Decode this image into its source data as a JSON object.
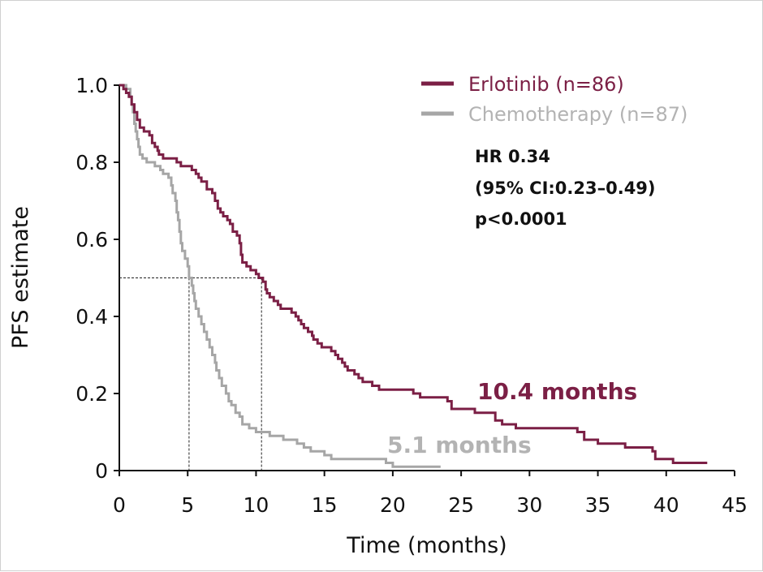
{
  "chart_data": {
    "type": "line",
    "title": "",
    "xlabel": "Time (months)",
    "ylabel": "PFS estimate",
    "xlim": [
      0,
      45
    ],
    "ylim": [
      0,
      1
    ],
    "x_ticks": [
      {
        "value": 0,
        "label": "0"
      },
      {
        "value": 5,
        "label": "5"
      },
      {
        "value": 10,
        "label": "10"
      },
      {
        "value": 15,
        "label": "15"
      },
      {
        "value": 20,
        "label": "20"
      },
      {
        "value": 25,
        "label": "25"
      },
      {
        "value": 30,
        "label": "30"
      },
      {
        "value": 35,
        "label": "35"
      },
      {
        "value": 40,
        "label": "40"
      },
      {
        "value": 45,
        "label": "45"
      }
    ],
    "y_ticks": [
      {
        "value": 0,
        "label": "0"
      },
      {
        "value": 0.2,
        "label": "0.2"
      },
      {
        "value": 0.4,
        "label": "0.4"
      },
      {
        "value": 0.6,
        "label": "0.6"
      },
      {
        "value": 0.8,
        "label": "0.8"
      },
      {
        "value": 1.0,
        "label": "1.0"
      }
    ],
    "grid": false,
    "legend_position": "top-right",
    "series": [
      {
        "name": "Erlotinib (n=86)",
        "color": "#7b1f45",
        "steps": [
          [
            0,
            1.0
          ],
          [
            0.3,
            0.99
          ],
          [
            0.5,
            0.98
          ],
          [
            0.7,
            0.97
          ],
          [
            0.9,
            0.95
          ],
          [
            1.1,
            0.93
          ],
          [
            1.3,
            0.91
          ],
          [
            1.5,
            0.89
          ],
          [
            1.8,
            0.88
          ],
          [
            2.2,
            0.87
          ],
          [
            2.4,
            0.85
          ],
          [
            2.6,
            0.84
          ],
          [
            2.8,
            0.83
          ],
          [
            2.9,
            0.82
          ],
          [
            3.2,
            0.81
          ],
          [
            4.2,
            0.8
          ],
          [
            4.5,
            0.79
          ],
          [
            5.3,
            0.78
          ],
          [
            5.6,
            0.77
          ],
          [
            5.8,
            0.76
          ],
          [
            6.0,
            0.75
          ],
          [
            6.4,
            0.73
          ],
          [
            6.8,
            0.72
          ],
          [
            7.0,
            0.7
          ],
          [
            7.2,
            0.68
          ],
          [
            7.4,
            0.67
          ],
          [
            7.6,
            0.66
          ],
          [
            7.9,
            0.65
          ],
          [
            8.1,
            0.64
          ],
          [
            8.3,
            0.62
          ],
          [
            8.6,
            0.61
          ],
          [
            8.8,
            0.59
          ],
          [
            8.9,
            0.58
          ],
          [
            8.9,
            0.56
          ],
          [
            9.0,
            0.54
          ],
          [
            9.3,
            0.53
          ],
          [
            9.6,
            0.52
          ],
          [
            10.0,
            0.51
          ],
          [
            10.2,
            0.5
          ],
          [
            10.5,
            0.49
          ],
          [
            10.7,
            0.47
          ],
          [
            10.8,
            0.46
          ],
          [
            11.0,
            0.45
          ],
          [
            11.3,
            0.44
          ],
          [
            11.6,
            0.43
          ],
          [
            11.8,
            0.42
          ],
          [
            12.6,
            0.41
          ],
          [
            12.9,
            0.4
          ],
          [
            13.1,
            0.39
          ],
          [
            13.3,
            0.38
          ],
          [
            13.5,
            0.37
          ],
          [
            13.8,
            0.36
          ],
          [
            14.1,
            0.35
          ],
          [
            14.2,
            0.34
          ],
          [
            14.5,
            0.33
          ],
          [
            14.8,
            0.32
          ],
          [
            15.5,
            0.31
          ],
          [
            15.8,
            0.3
          ],
          [
            16.0,
            0.29
          ],
          [
            16.3,
            0.28
          ],
          [
            16.5,
            0.27
          ],
          [
            16.7,
            0.26
          ],
          [
            17.2,
            0.25
          ],
          [
            17.5,
            0.24
          ],
          [
            17.8,
            0.23
          ],
          [
            18.5,
            0.22
          ],
          [
            19.0,
            0.21
          ],
          [
            21.5,
            0.2
          ],
          [
            22.0,
            0.19
          ],
          [
            24.0,
            0.18
          ],
          [
            24.3,
            0.16
          ],
          [
            26.0,
            0.15
          ],
          [
            27.5,
            0.13
          ],
          [
            28.0,
            0.12
          ],
          [
            29.0,
            0.11
          ],
          [
            33.5,
            0.1
          ],
          [
            34.0,
            0.08
          ],
          [
            35.0,
            0.07
          ],
          [
            37.0,
            0.06
          ],
          [
            39.0,
            0.05
          ],
          [
            39.2,
            0.03
          ],
          [
            40.5,
            0.02
          ],
          [
            43.0,
            0.02
          ]
        ],
        "median_months": 10.4,
        "median_label": "10.4 months"
      },
      {
        "name": "Chemotherapy (n=87)",
        "color": "#a6a6a6",
        "steps": [
          [
            0,
            1.0
          ],
          [
            0.5,
            0.99
          ],
          [
            0.8,
            0.97
          ],
          [
            0.9,
            0.95
          ],
          [
            1.0,
            0.93
          ],
          [
            1.1,
            0.9
          ],
          [
            1.2,
            0.88
          ],
          [
            1.3,
            0.86
          ],
          [
            1.4,
            0.84
          ],
          [
            1.5,
            0.82
          ],
          [
            1.7,
            0.81
          ],
          [
            2.0,
            0.8
          ],
          [
            2.6,
            0.79
          ],
          [
            3.0,
            0.78
          ],
          [
            3.2,
            0.77
          ],
          [
            3.6,
            0.76
          ],
          [
            3.8,
            0.74
          ],
          [
            3.9,
            0.72
          ],
          [
            4.1,
            0.7
          ],
          [
            4.2,
            0.67
          ],
          [
            4.3,
            0.65
          ],
          [
            4.4,
            0.62
          ],
          [
            4.5,
            0.59
          ],
          [
            4.6,
            0.57
          ],
          [
            4.8,
            0.55
          ],
          [
            5.0,
            0.53
          ],
          [
            5.1,
            0.5
          ],
          [
            5.3,
            0.48
          ],
          [
            5.4,
            0.46
          ],
          [
            5.5,
            0.44
          ],
          [
            5.6,
            0.42
          ],
          [
            5.8,
            0.4
          ],
          [
            6.0,
            0.38
          ],
          [
            6.2,
            0.36
          ],
          [
            6.4,
            0.34
          ],
          [
            6.6,
            0.32
          ],
          [
            6.8,
            0.3
          ],
          [
            7.0,
            0.28
          ],
          [
            7.1,
            0.26
          ],
          [
            7.3,
            0.24
          ],
          [
            7.5,
            0.22
          ],
          [
            7.8,
            0.2
          ],
          [
            8.0,
            0.18
          ],
          [
            8.2,
            0.17
          ],
          [
            8.5,
            0.15
          ],
          [
            8.8,
            0.14
          ],
          [
            9.0,
            0.12
          ],
          [
            9.5,
            0.11
          ],
          [
            10.0,
            0.1
          ],
          [
            11.0,
            0.09
          ],
          [
            12.0,
            0.08
          ],
          [
            13.0,
            0.07
          ],
          [
            13.5,
            0.06
          ],
          [
            14.0,
            0.05
          ],
          [
            15.0,
            0.04
          ],
          [
            15.5,
            0.03
          ],
          [
            19.5,
            0.02
          ],
          [
            20.0,
            0.01
          ],
          [
            23.5,
            0.01
          ]
        ],
        "median_months": 5.1,
        "median_label": "5.1 months"
      }
    ],
    "annotations": {
      "hr_line1": "HR 0.34",
      "hr_line2": "(95% CI:0.23–0.49)",
      "hr_line3": "p<0.0001"
    },
    "median_reference_y": 0.5
  }
}
